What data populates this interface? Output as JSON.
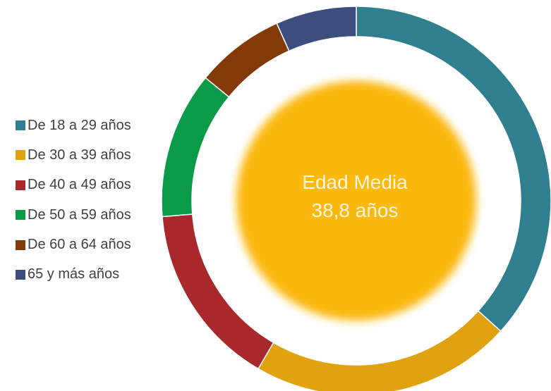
{
  "chart_data": {
    "type": "donut",
    "categories": [
      "De 18 a 29 años",
      "De 30 a 39 años",
      "De 40 a 49 años",
      "De 50 a 59 años",
      "De 60 a 64 años",
      "65 y más años"
    ],
    "values": [
      36.7,
      21.7,
      15.3,
      12.2,
      7.4,
      6.7
    ],
    "unit": "%",
    "colors": [
      "#2F7F8F",
      "#E1A20F",
      "#A8282C",
      "#0A9B48",
      "#833A06",
      "#3B4E7E"
    ],
    "center_fill": "#FBB80F",
    "center_label": {
      "line1": "Edad Media",
      "line2": "38,8 años"
    },
    "legend_position": "left"
  }
}
